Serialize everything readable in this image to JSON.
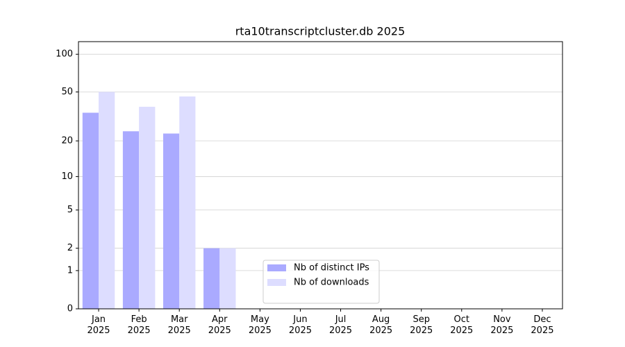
{
  "chart_data": {
    "type": "bar",
    "title": "rta10transcriptcluster.db 2025",
    "categories": [
      "Jan\n2025",
      "Feb\n2025",
      "Mar\n2025",
      "Apr\n2025",
      "May\n2025",
      "Jun\n2025",
      "Jul\n2025",
      "Aug\n2025",
      "Sep\n2025",
      "Oct\n2025",
      "Nov\n2025",
      "Dec\n2025"
    ],
    "series": [
      {
        "name": "Nb of distinct IPs",
        "color": "#aaaaff",
        "values": [
          34,
          24,
          23,
          2,
          0,
          0,
          0,
          0,
          0,
          0,
          0,
          0
        ]
      },
      {
        "name": "Nb of downloads",
        "color": "#ddddff",
        "values": [
          50,
          38,
          46,
          2,
          0,
          0,
          0,
          0,
          0,
          0,
          0,
          0
        ]
      }
    ],
    "yscale": "log1p",
    "ylim": [
      0,
      126
    ],
    "yticks": [
      0,
      1,
      2,
      5,
      10,
      20,
      50,
      100
    ],
    "grid": true,
    "legend": "lower center"
  }
}
